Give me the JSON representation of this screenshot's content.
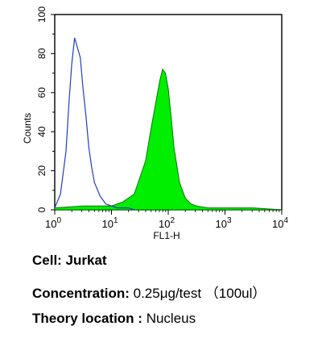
{
  "chart_data": {
    "type": "area",
    "xlabel": "FL1-H",
    "ylabel": "Counts",
    "xscale": "log",
    "xlim": [
      1,
      10000
    ],
    "ylim": [
      0,
      100
    ],
    "x_ticks": [
      {
        "base": "10",
        "exp": "0",
        "value": 1
      },
      {
        "base": "10",
        "exp": "1",
        "value": 10
      },
      {
        "base": "10",
        "exp": "2",
        "value": 100
      },
      {
        "base": "10",
        "exp": "3",
        "value": 1000
      },
      {
        "base": "10",
        "exp": "4",
        "value": 10000
      }
    ],
    "y_ticks": [
      "0",
      "20",
      "40",
      "60",
      "80",
      "100"
    ],
    "grid": false,
    "series": [
      {
        "style": "outline",
        "color": "#1f3fbf",
        "x": [
          1.0,
          1.26,
          1.58,
          1.78,
          2.0,
          2.24,
          2.51,
          2.82,
          3.16,
          3.55,
          3.98,
          4.47,
          5.01,
          6.31,
          7.94,
          10.0,
          12.6,
          15.8,
          20.0,
          25.1
        ],
        "y": [
          1,
          8,
          30,
          55,
          75,
          88,
          83,
          78,
          62,
          48,
          32,
          22,
          14,
          7,
          3,
          2,
          1,
          1,
          1,
          0
        ]
      },
      {
        "style": "filled",
        "color": "#00ee00",
        "x": [
          1.0,
          3.16,
          10.0,
          15.8,
          25.1,
          39.8,
          50.1,
          63.1,
          70.8,
          79.4,
          89.1,
          100,
          112,
          126,
          158,
          200,
          251,
          316,
          501,
          1000,
          3162,
          10000
        ],
        "y": [
          1,
          2,
          2,
          4,
          8,
          25,
          42,
          58,
          66,
          72,
          70,
          62,
          48,
          32,
          14,
          6,
          3,
          2,
          1,
          1,
          1,
          0
        ]
      }
    ]
  },
  "captions": {
    "cell_label": "Cell: Jurkat",
    "concentration_label": "Concentration: ",
    "concentration_value": "0.25μg/test （100ul）",
    "location_label": "Theory location : ",
    "location_value": "Nucleus"
  }
}
